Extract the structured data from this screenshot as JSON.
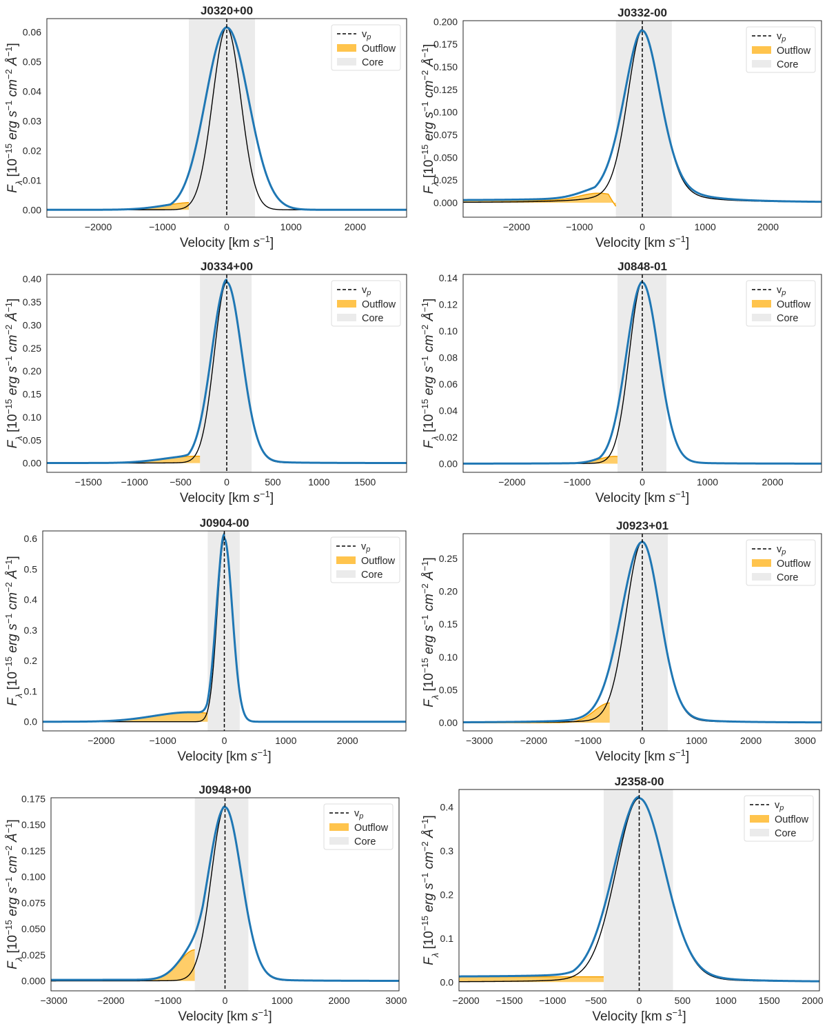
{
  "figure": {
    "colors": {
      "profile": "#1f77b4",
      "component": "#000000",
      "outflow_fill": "#ffc44d",
      "outflow_line": "#f5a000",
      "core_band": "#ebebeb",
      "vp_line": "#000000",
      "frame": "#262626"
    }
  },
  "chart_data": [
    {
      "type": "line",
      "title": "J0320+00",
      "xlabel": "Velocity [km s⁻¹]",
      "ylabel": "Fλ [10⁻¹⁵ erg s⁻¹ cm⁻² Å⁻¹]",
      "xlim": [
        -2800,
        2800
      ],
      "ylim": [
        -0.0025,
        0.0645
      ],
      "xticks": [
        -2000,
        -1000,
        0,
        1000,
        2000
      ],
      "xtick_labels": [
        "−2000",
        "−1000",
        "0",
        "1000",
        "2000"
      ],
      "yticks": [
        0,
        0.01,
        0.02,
        0.03,
        0.04,
        0.05,
        0.06
      ],
      "ytick_labels": [
        "0.00",
        "0.01",
        "0.02",
        "0.03",
        "0.04",
        "0.05",
        "0.06"
      ],
      "legend": [
        "v_p",
        "Outflow",
        "Core"
      ],
      "legend_loc": "upper right",
      "v_p": 0,
      "core_range": [
        -590,
        440
      ],
      "outflow_edge": -590,
      "profile": {
        "amp": 0.0615,
        "sl": 330,
        "sr": 340
      },
      "component": {
        "amp": 0.0615,
        "sl": 220
      },
      "outflow": {
        "amp": 0.0025,
        "mu": -500,
        "s": 450
      }
    },
    {
      "type": "line",
      "title": "J0332-00",
      "xlabel": "Velocity [km s⁻¹]",
      "ylabel": "Fλ [10⁻¹⁵ erg s⁻¹ cm⁻² Å⁻¹]",
      "xlim": [
        -2850,
        2850
      ],
      "ylim": [
        -0.016,
        0.201
      ],
      "xticks": [
        -2000,
        -1000,
        0,
        1000,
        2000
      ],
      "xtick_labels": [
        "−2000",
        "−1000",
        "0",
        "1000",
        "2000"
      ],
      "yticks": [
        0,
        0.025,
        0.05,
        0.075,
        0.1,
        0.125,
        0.15,
        0.175,
        0.2
      ],
      "ytick_labels": [
        "0.000",
        "0.025",
        "0.050",
        "0.075",
        "0.100",
        "0.125",
        "0.150",
        "0.175",
        "0.200"
      ],
      "legend": [
        "v_p",
        "Outflow",
        "Core"
      ],
      "legend_loc": "upper right",
      "v_p": 0,
      "core_range": [
        -420,
        470
      ],
      "outflow_edge": -420,
      "profile": {
        "amp": 0.19,
        "sl": 300,
        "sr": 300,
        "lor": 0.35
      },
      "component": {
        "amp": 0.19,
        "sl": 240,
        "sr": 300,
        "lor": 0.25
      },
      "outflow": {
        "amp": 0.008,
        "mu": -700,
        "s": 300,
        "base": 0.0025,
        "drop": -0.004
      }
    },
    {
      "type": "line",
      "title": "J0334+00",
      "xlabel": "Velocity [km s⁻¹]",
      "ylabel": "Fλ [10⁻¹⁵ erg s⁻¹ cm⁻² Å⁻¹]",
      "xlim": [
        -1950,
        1950
      ],
      "ylim": [
        -0.02,
        0.41
      ],
      "xticks": [
        -1500,
        -1000,
        -500,
        0,
        500,
        1000,
        1500
      ],
      "xtick_labels": [
        "−1500",
        "−1000",
        "−500",
        "0",
        "500",
        "1000",
        "1500"
      ],
      "yticks": [
        0,
        0.05,
        0.1,
        0.15,
        0.2,
        0.25,
        0.3,
        0.35,
        0.4
      ],
      "ytick_labels": [
        "0.00",
        "0.05",
        "0.10",
        "0.15",
        "0.20",
        "0.25",
        "0.30",
        "0.35",
        "0.40"
      ],
      "legend": [
        "v_p",
        "Outflow",
        "Core"
      ],
      "legend_loc": "upper right",
      "v_p": 0,
      "core_range": [
        -290,
        270
      ],
      "outflow_edge": -290,
      "profile": {
        "amp": 0.393,
        "sl": 165,
        "sr": 165,
        "lor": 0.05
      },
      "component": {
        "amp": 0.393,
        "sl": 135,
        "sr": 165,
        "lor": 0.02
      },
      "outflow": {
        "amp": 0.015,
        "mu": -330,
        "s": 350
      }
    },
    {
      "type": "line",
      "title": "J0848-01",
      "xlabel": "Velocity [km s⁻¹]",
      "ylabel": "Fλ [10⁻¹⁵ erg s⁻¹ cm⁻² Å⁻¹]",
      "xlim": [
        -2750,
        2750
      ],
      "ylim": [
        -0.0065,
        0.1425
      ],
      "xticks": [
        -2000,
        -1000,
        0,
        1000,
        2000
      ],
      "xtick_labels": [
        "−2000",
        "−1000",
        "0",
        "1000",
        "2000"
      ],
      "yticks": [
        0,
        0.02,
        0.04,
        0.06,
        0.08,
        0.1,
        0.12,
        0.14
      ],
      "ytick_labels": [
        "0.00",
        "0.02",
        "0.04",
        "0.06",
        "0.08",
        "0.10",
        "0.12",
        "0.14"
      ],
      "legend": [
        "v_p",
        "Outflow",
        "Core"
      ],
      "legend_loc": "upper right",
      "v_p": 0,
      "core_range": [
        -380,
        370
      ],
      "outflow_edge": -380,
      "profile": {
        "amp": 0.1365,
        "sl": 245,
        "sr": 250,
        "lor": 0.04
      },
      "component": {
        "amp": 0.1365,
        "sl": 200,
        "sr": 250,
        "lor": 0.02
      },
      "outflow": {
        "amp": 0.0055,
        "mu": -420,
        "s": 250
      }
    },
    {
      "type": "line",
      "title": "J0904-00",
      "xlabel": "Velocity [km s⁻¹]",
      "ylabel": "Fλ [10⁻¹⁵ erg s⁻¹ cm⁻² Å⁻¹]",
      "xlim": [
        -2950,
        2950
      ],
      "ylim": [
        -0.03,
        0.625
      ],
      "xticks": [
        -2000,
        -1000,
        0,
        1000,
        2000
      ],
      "xtick_labels": [
        "−2000",
        "−1000",
        "0",
        "1000",
        "2000"
      ],
      "yticks": [
        0,
        0.1,
        0.2,
        0.3,
        0.4,
        0.5,
        0.6
      ],
      "ytick_labels": [
        "0.0",
        "0.1",
        "0.2",
        "0.3",
        "0.4",
        "0.5",
        "0.6"
      ],
      "legend": [
        "v_p",
        "Outflow",
        "Core"
      ],
      "legend_loc": "upper right",
      "v_p": 0,
      "core_range": [
        -270,
        250
      ],
      "outflow_edge": -270,
      "profile": {
        "amp": 0.6,
        "sl": 130,
        "sr": 130
      },
      "component": {
        "amp": 0.6,
        "sl": 115,
        "sr": 130
      },
      "outflow": {
        "amp": 0.031,
        "mu": -550,
        "s": 600
      }
    },
    {
      "type": "line",
      "title": "J0923+01",
      "xlabel": "Velocity [km s⁻¹]",
      "ylabel": "Fλ [10⁻¹⁵ erg s⁻¹ cm⁻² Å⁻¹]",
      "xlim": [
        -3300,
        3300
      ],
      "ylim": [
        -0.0125,
        0.2875
      ],
      "xticks": [
        -3000,
        -2000,
        -1000,
        0,
        1000,
        2000,
        3000
      ],
      "xtick_labels": [
        "−3000",
        "−2000",
        "−1000",
        "0",
        "1000",
        "2000",
        "3000"
      ],
      "yticks": [
        0,
        0.05,
        0.1,
        0.15,
        0.2,
        0.25
      ],
      "ytick_labels": [
        "0.00",
        "0.05",
        "0.10",
        "0.15",
        "0.20",
        "0.25"
      ],
      "legend": [
        "v_p",
        "Outflow",
        "Core"
      ],
      "legend_loc": "upper right",
      "v_p": 0,
      "core_range": [
        -600,
        470
      ],
      "outflow_edge": -600,
      "profile": {
        "amp": 0.275,
        "sl": 390,
        "sr": 330,
        "lor": 0.12
      },
      "component": {
        "amp": 0.275,
        "sl": 300,
        "sr": 330,
        "lor": 0.08
      },
      "outflow": {
        "amp": 0.03,
        "mu": -600,
        "s": 280
      }
    },
    {
      "type": "line",
      "title": "J0948+00",
      "xlabel": "Velocity [km s⁻¹]",
      "ylabel": "Fλ [10⁻¹⁵ erg s⁻¹ cm⁻² Å⁻¹]",
      "xlim": [
        -3050,
        3050
      ],
      "ylim": [
        -0.0095,
        0.176
      ],
      "xticks": [
        -3000,
        -2000,
        -1000,
        0,
        1000,
        2000,
        3000
      ],
      "xtick_labels": [
        "−3000",
        "−2000",
        "−1000",
        "0",
        "1000",
        "2000",
        "3000"
      ],
      "yticks": [
        0,
        0.025,
        0.05,
        0.075,
        0.1,
        0.125,
        0.15,
        0.175
      ],
      "ytick_labels": [
        "0.000",
        "0.025",
        "0.050",
        "0.075",
        "0.100",
        "0.125",
        "0.150",
        "0.175"
      ],
      "legend": [
        "v_p",
        "Outflow",
        "Core"
      ],
      "legend_loc": "upper right",
      "v_p": 0,
      "core_range": [
        -530,
        410
      ],
      "outflow_edge": -530,
      "profile": {
        "amp": 0.167,
        "sl": 300,
        "sr": 290,
        "lor": 0.05
      },
      "component": {
        "amp": 0.167,
        "sl": 240,
        "sr": 290,
        "lor": 0.02
      },
      "outflow": {
        "amp": 0.029,
        "mu": -520,
        "s": 280,
        "base": 0.001
      }
    },
    {
      "type": "line",
      "title": "J2358-00",
      "xlabel": "Velocity [km s⁻¹]",
      "ylabel": "Fλ [10⁻¹⁵ erg s⁻¹ cm⁻² Å⁻¹]",
      "xlim": [
        -2080,
        2080
      ],
      "ylim": [
        -0.02,
        0.44
      ],
      "xticks": [
        -2000,
        -1500,
        -1000,
        -500,
        0,
        500,
        1000,
        1500,
        2000
      ],
      "xtick_labels": [
        "−2000",
        "−1500",
        "−1000",
        "−500",
        "0",
        "500",
        "1000",
        "1500",
        "2000"
      ],
      "yticks": [
        0,
        0.1,
        0.2,
        0.3,
        0.4
      ],
      "ytick_labels": [
        "0.0",
        "0.1",
        "0.2",
        "0.3",
        "0.4"
      ],
      "legend": [
        "v_p",
        "Outflow",
        "Core"
      ],
      "legend_loc": "upper right",
      "v_p": 0,
      "core_range": [
        -410,
        390
      ],
      "outflow_edge": -410,
      "profile": {
        "amp": 0.42,
        "sl": 300,
        "sr": 300,
        "lor": 0.15
      },
      "component": {
        "amp": 0.42,
        "sl": 270,
        "sr": 300,
        "lor": 0.1
      },
      "outflow": {
        "amp": 0.0,
        "mu": -400,
        "s": 300,
        "base": 0.012,
        "plateau": true
      }
    }
  ]
}
